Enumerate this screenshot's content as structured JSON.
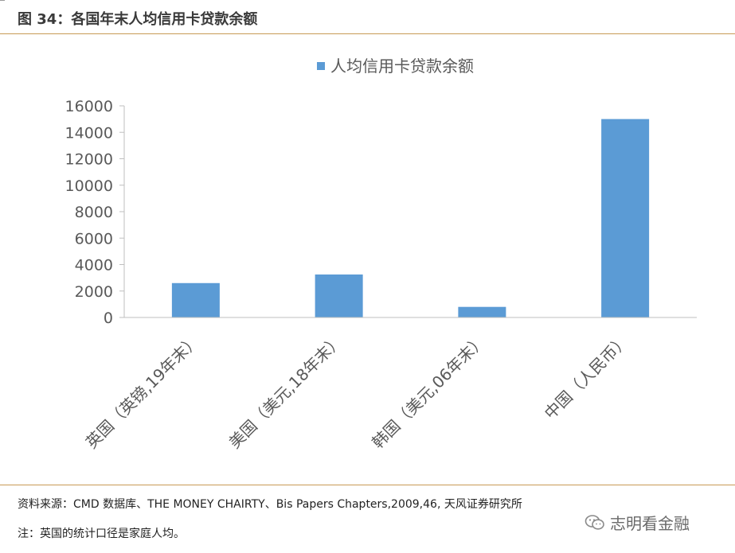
{
  "figure": {
    "title": "图 34：各国年末人均信用卡贷款余额"
  },
  "footer": {
    "source": "资料来源：CMD 数据库、THE MONEY CHAIRTY、Bis Papers Chapters,2009,46, 天风证券研究所",
    "note": "注：英国的统计口径是家庭人均。",
    "brand": "志明看金融",
    "brand_icon": "wechat-icon"
  },
  "colors": {
    "bar": "#5b9bd5",
    "rule": "#c89a55",
    "axis": "#bfbfbf",
    "tick_text": "#595959"
  },
  "chart_data": {
    "type": "bar",
    "title": "",
    "categories": [
      "英国（英镑,19年末）",
      "美国（美元,18年末）",
      "韩国（美元,06年末）",
      "中国（人民币）"
    ],
    "series": [
      {
        "name": "人均信用卡贷款余额",
        "values": [
          2600,
          3250,
          800,
          15000
        ]
      }
    ],
    "ylim": [
      0,
      16000
    ],
    "yticks": [
      "0",
      "2000",
      "4000",
      "6000",
      "8000",
      "10000",
      "12000",
      "14000",
      "16000"
    ],
    "xlabel": "",
    "ylabel": "",
    "legend": "top-center",
    "grid": false
  }
}
